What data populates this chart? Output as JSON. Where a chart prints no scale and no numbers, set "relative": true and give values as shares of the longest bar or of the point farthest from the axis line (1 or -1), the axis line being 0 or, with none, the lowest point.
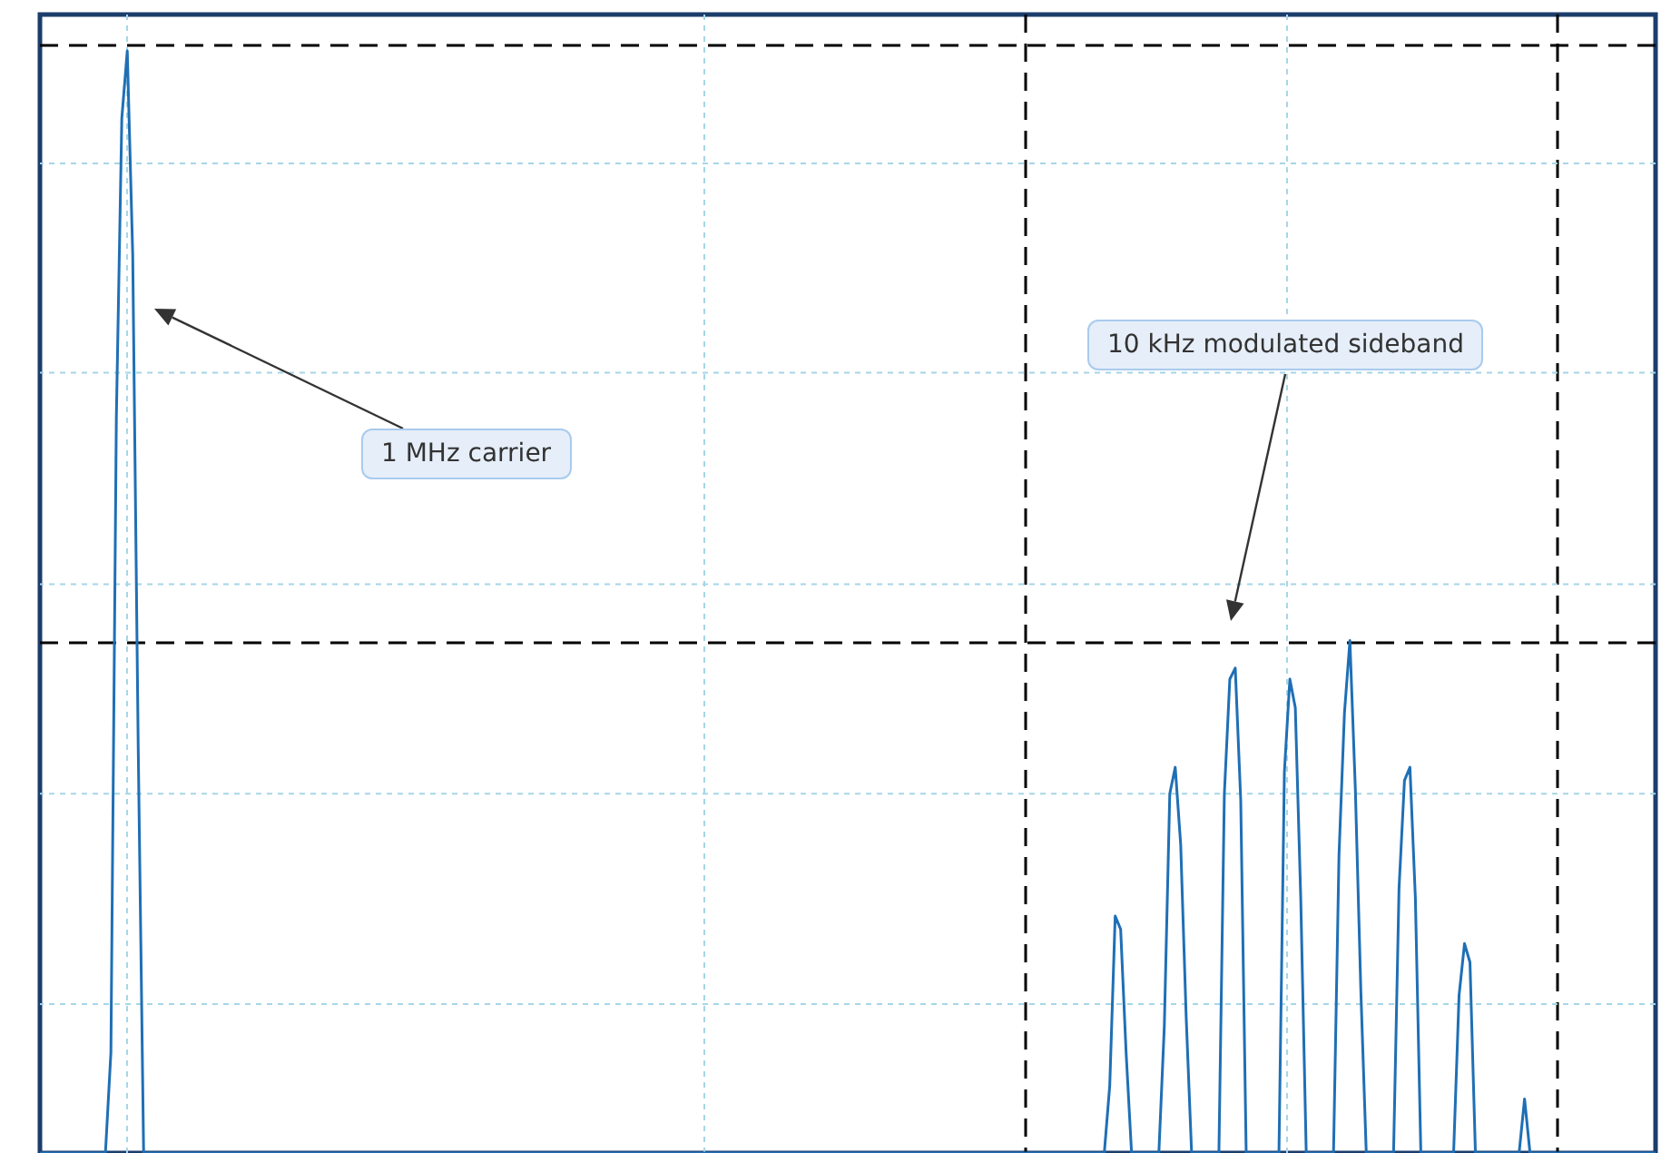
{
  "chart_data": {
    "type": "line",
    "relative": true,
    "marker": "none",
    "line_style": "solid",
    "categories": [
      null,
      null,
      null,
      null,
      null,
      null,
      null,
      null,
      null,
      null,
      null,
      null,
      null,
      null,
      null,
      null,
      null,
      null,
      null,
      null,
      null,
      null,
      null,
      null,
      null,
      null,
      null,
      null,
      null,
      null,
      null,
      null,
      null,
      null,
      null,
      null,
      null,
      null,
      null,
      null,
      null,
      null,
      null,
      null,
      null,
      null,
      null,
      null,
      null,
      null,
      null,
      null,
      null,
      null,
      null,
      null,
      null,
      null,
      null,
      null,
      null,
      null,
      null,
      null,
      null,
      null,
      null,
      null,
      null,
      null,
      null,
      null,
      null,
      null,
      null,
      null,
      null,
      null,
      null,
      null,
      null,
      null,
      null,
      null,
      null,
      null,
      null,
      null,
      null,
      null,
      null,
      null,
      null,
      null,
      null,
      null,
      null,
      null,
      null,
      null,
      null,
      null,
      null,
      null,
      null,
      null,
      null,
      null,
      null,
      null,
      null,
      null,
      null,
      null,
      null,
      null,
      null,
      null,
      null,
      null,
      null,
      null,
      null,
      null,
      null,
      null,
      null,
      null,
      null,
      null,
      null,
      null,
      null,
      null,
      null,
      null,
      null,
      null,
      null,
      null,
      null,
      null,
      null,
      null,
      null,
      null,
      null,
      null,
      null,
      null,
      null,
      null,
      null,
      null,
      null,
      null,
      null,
      null,
      null,
      null,
      null,
      null,
      null,
      null,
      null,
      null,
      null,
      null,
      null,
      null,
      null,
      null,
      null,
      null,
      null,
      null,
      null,
      null,
      null,
      null,
      null,
      null,
      null,
      null,
      null,
      null,
      null,
      null,
      null,
      null,
      null,
      null,
      null,
      null,
      null,
      null,
      null,
      null,
      null,
      null,
      null,
      null,
      null,
      null,
      null,
      null,
      null,
      null,
      null,
      null,
      null,
      null,
      null,
      null,
      null,
      null,
      null,
      null,
      null,
      null,
      null,
      null,
      null,
      null,
      null,
      null,
      null,
      null,
      null,
      null,
      null,
      null,
      null,
      null,
      null,
      null,
      null,
      null,
      null,
      null,
      null,
      null,
      null,
      null,
      null,
      null,
      null,
      null,
      null,
      null,
      null,
      null,
      null,
      null,
      null,
      null,
      null,
      null,
      null,
      null,
      null,
      null,
      null,
      null,
      null,
      null,
      null,
      null,
      null,
      null,
      null,
      null,
      null,
      null,
      null,
      null,
      null,
      null,
      null,
      null,
      null,
      null,
      null,
      null,
      null,
      null,
      null,
      null,
      null,
      null,
      null,
      null,
      null,
      null,
      null,
      null,
      null
    ],
    "series": [
      {
        "color": "#1f6fb5",
        "values": [
          0,
          0,
          0,
          0,
          0,
          0,
          0,
          0,
          0,
          0,
          0,
          0,
          0,
          0.091,
          0.667,
          0.939,
          1,
          0.815,
          0.37,
          0,
          0,
          0,
          0,
          0,
          0,
          0,
          0,
          0,
          0,
          0,
          0,
          0,
          0,
          0,
          0,
          0,
          0,
          0,
          0,
          0,
          0,
          0,
          0,
          0,
          0,
          0,
          0,
          0,
          0,
          0,
          0,
          0,
          0,
          0,
          0,
          0,
          0,
          0,
          0,
          0,
          0,
          0,
          0,
          0,
          0,
          0,
          0,
          0,
          0,
          0,
          0,
          0,
          0,
          0,
          0,
          0,
          0,
          0,
          0,
          0,
          0,
          0,
          0,
          0,
          0,
          0,
          0,
          0,
          0,
          0,
          0,
          0,
          0,
          0,
          0,
          0,
          0,
          0,
          0,
          0,
          0,
          0,
          0,
          0,
          0,
          0,
          0,
          0,
          0,
          0,
          0,
          0,
          0,
          0,
          0,
          0,
          0,
          0,
          0,
          0,
          0,
          0,
          0,
          0,
          0,
          0,
          0,
          0,
          0,
          0,
          0,
          0,
          0,
          0,
          0,
          0,
          0,
          0,
          0,
          0,
          0,
          0,
          0,
          0,
          0,
          0,
          0,
          0,
          0,
          0,
          0,
          0,
          0,
          0,
          0,
          0,
          0,
          0,
          0,
          0,
          0,
          0,
          0,
          0,
          0,
          0,
          0,
          0,
          0,
          0,
          0,
          0,
          0,
          0,
          0,
          0,
          0,
          0,
          0,
          0,
          0,
          0,
          0,
          0,
          0,
          0,
          0,
          0,
          0,
          0,
          0,
          0,
          0,
          0,
          0,
          0,
          0.061,
          0.215,
          0.203,
          0.091,
          0,
          0,
          0,
          0,
          0,
          0,
          0.115,
          0.326,
          0.35,
          0.28,
          0.124,
          0,
          0,
          0,
          0,
          0,
          0,
          0.326,
          0.43,
          0.44,
          0.32,
          0,
          0,
          0,
          0,
          0,
          0,
          0,
          0.346,
          0.43,
          0.404,
          0.23,
          0,
          0,
          0,
          0,
          0,
          0,
          0.27,
          0.399,
          0.465,
          0.33,
          0.148,
          0,
          0,
          0,
          0,
          0,
          0,
          0.24,
          0.338,
          0.35,
          0.231,
          0,
          0,
          0,
          0,
          0,
          0,
          0,
          0.143,
          0.19,
          0.173,
          0,
          0,
          0,
          0,
          0,
          0,
          0,
          0,
          0,
          0.049,
          0,
          0,
          0,
          0,
          0,
          0,
          0,
          0,
          0,
          0,
          0,
          0,
          0,
          0,
          0,
          0,
          0,
          0,
          0,
          0,
          0,
          0,
          0,
          0
        ]
      }
    ],
    "ref_lines": [
      {
        "axis": "y",
        "value": 1.005,
        "color": "#000000",
        "line_style": "dashed"
      },
      {
        "axis": "y",
        "value": 0.463,
        "color": "#000000",
        "line_style": "dashed"
      },
      {
        "axis": "y",
        "value": 0.898,
        "color": "#a6d6e8",
        "line_style": "dotted"
      },
      {
        "axis": "y",
        "value": 0.708,
        "color": "#a6d6e8",
        "line_style": "dotted"
      },
      {
        "axis": "y",
        "value": 0.516,
        "color": "#a6d6e8",
        "line_style": "dotted"
      },
      {
        "axis": "y",
        "value": 0.326,
        "color": "#a6d6e8",
        "line_style": "dotted"
      },
      {
        "axis": "y",
        "value": 0.135,
        "color": "#a6d6e8",
        "line_style": "dotted"
      }
    ],
    "annotations": [
      "1 MHz carrier",
      "10 kHz modulated sideband"
    ]
  }
}
